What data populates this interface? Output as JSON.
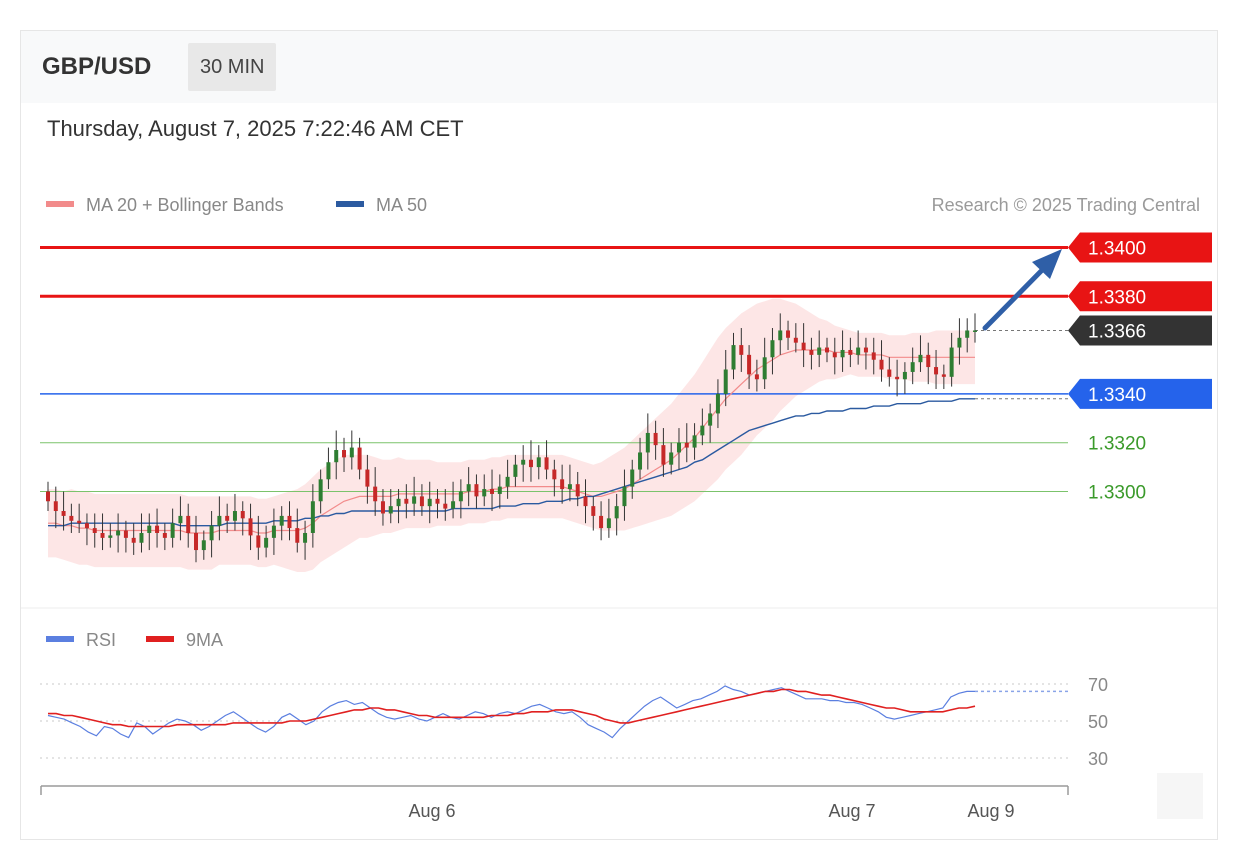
{
  "header": {
    "symbol": "GBP/USD",
    "timeframe": "30 MIN",
    "datetime": "Thursday, August 7, 2025 7:22:46 AM CET"
  },
  "legend": {
    "ma20_label": "MA 20 + Bollinger Bands",
    "ma50_label": "MA 50",
    "copyright": "Research © 2025 Trading Central",
    "ma20_color": "#f28b8b",
    "ma50_color": "#2b5aa0"
  },
  "rsi_legend": {
    "rsi_label": "RSI",
    "ma9_label": "9MA",
    "rsi_color": "#5b7fe0",
    "ma9_color": "#e02020"
  },
  "chart_data": [
    {
      "type": "candlestick",
      "ylim": [
        1.3255,
        1.3425
      ],
      "x_labels": [
        "Aug 6",
        "Aug 7",
        "Aug 9"
      ],
      "levels": [
        {
          "value": 1.34,
          "label": "1.3400",
          "color": "#e81414",
          "kind": "resistance"
        },
        {
          "value": 1.338,
          "label": "1.3380",
          "color": "#e81414",
          "kind": "resistance"
        },
        {
          "value": 1.3366,
          "label": "1.3366",
          "color": "#333333",
          "kind": "current"
        },
        {
          "value": 1.334,
          "label": "1.3340",
          "color": "#2563eb",
          "kind": "pivot"
        },
        {
          "value": 1.332,
          "label": "1.3320",
          "color": "#3a9a2a",
          "kind": "support"
        },
        {
          "value": 1.33,
          "label": "1.3300",
          "color": "#3a9a2a",
          "kind": "support"
        }
      ],
      "close_series": [
        1.3296,
        1.3292,
        1.329,
        1.3288,
        1.3287,
        1.3285,
        1.3283,
        1.3281,
        1.3282,
        1.3284,
        1.3281,
        1.3279,
        1.3283,
        1.3286,
        1.3283,
        1.3281,
        1.3287,
        1.329,
        1.3283,
        1.3276,
        1.328,
        1.3286,
        1.329,
        1.3288,
        1.3292,
        1.3289,
        1.3282,
        1.3277,
        1.3281,
        1.3286,
        1.329,
        1.3285,
        1.3279,
        1.3283,
        1.3296,
        1.3305,
        1.3312,
        1.3317,
        1.3314,
        1.3318,
        1.3309,
        1.3302,
        1.3296,
        1.3291,
        1.3294,
        1.3297,
        1.3295,
        1.3298,
        1.3294,
        1.3297,
        1.3295,
        1.3293,
        1.3296,
        1.33,
        1.3303,
        1.3298,
        1.3301,
        1.3299,
        1.3302,
        1.3306,
        1.3311,
        1.3313,
        1.331,
        1.3314,
        1.3309,
        1.3305,
        1.3301,
        1.3303,
        1.3298,
        1.3294,
        1.329,
        1.3285,
        1.3289,
        1.3294,
        1.3302,
        1.3309,
        1.3316,
        1.3324,
        1.3319,
        1.3311,
        1.3316,
        1.332,
        1.3318,
        1.3323,
        1.3327,
        1.3332,
        1.334,
        1.335,
        1.336,
        1.3356,
        1.3348,
        1.3346,
        1.3355,
        1.3362,
        1.3366,
        1.3363,
        1.3361,
        1.3358,
        1.3356,
        1.3359,
        1.3357,
        1.3355,
        1.3358,
        1.3356,
        1.3359,
        1.3357,
        1.3354,
        1.335,
        1.3347,
        1.3346,
        1.3349,
        1.3353,
        1.3356,
        1.3351,
        1.3348,
        1.3347,
        1.3359,
        1.3363,
        1.3366,
        1.3366
      ],
      "ma20": [
        1.3287,
        1.3287,
        1.3286,
        1.3286,
        1.3285,
        1.3285,
        1.3284,
        1.3284,
        1.3284,
        1.3284,
        1.3284,
        1.3284,
        1.3284,
        1.3284,
        1.3284,
        1.3284,
        1.3284,
        1.3284,
        1.3283,
        1.3283,
        1.3283,
        1.3283,
        1.3284,
        1.3284,
        1.3284,
        1.3284,
        1.3284,
        1.3283,
        1.3283,
        1.3284,
        1.3284,
        1.3284,
        1.3284,
        1.3285,
        1.3287,
        1.329,
        1.3292,
        1.3294,
        1.3296,
        1.3297,
        1.3298,
        1.3298,
        1.3298,
        1.3298,
        1.3298,
        1.3299,
        1.3299,
        1.3299,
        1.3299,
        1.3299,
        1.3299,
        1.3299,
        1.3299,
        1.3299,
        1.33,
        1.33,
        1.33,
        1.3301,
        1.3301,
        1.3302,
        1.3302,
        1.3302,
        1.3302,
        1.3302,
        1.3302,
        1.3302,
        1.3302,
        1.3301,
        1.33,
        1.3299,
        1.3298,
        1.3298,
        1.3299,
        1.33,
        1.3301,
        1.3303,
        1.3305,
        1.3307,
        1.3309,
        1.3311,
        1.3313,
        1.3316,
        1.3319,
        1.3322,
        1.3326,
        1.333,
        1.3334,
        1.3338,
        1.3341,
        1.3344,
        1.3347,
        1.335,
        1.3352,
        1.3354,
        1.3356,
        1.3357,
        1.3358,
        1.3358,
        1.3358,
        1.3358,
        1.3358,
        1.3357,
        1.3357,
        1.3357,
        1.3356,
        1.3356,
        1.3356,
        1.3356,
        1.3355,
        1.3355,
        1.3355,
        1.3355,
        1.3355,
        1.3355,
        1.3355,
        1.3355,
        1.3355,
        1.3355,
        1.3355,
        1.3355
      ],
      "ma50": [
        1.3286,
        1.3286,
        1.3286,
        1.3287,
        1.3287,
        1.3287,
        1.3287,
        1.3287,
        1.3287,
        1.3287,
        1.3287,
        1.3287,
        1.3287,
        1.3287,
        1.3287,
        1.3287,
        1.3287,
        1.3286,
        1.3286,
        1.3286,
        1.3286,
        1.3286,
        1.3286,
        1.3287,
        1.3287,
        1.3287,
        1.3287,
        1.3287,
        1.3287,
        1.3288,
        1.3288,
        1.3288,
        1.3288,
        1.3289,
        1.3289,
        1.329,
        1.329,
        1.3291,
        1.3291,
        1.3292,
        1.3292,
        1.3292,
        1.3292,
        1.3292,
        1.3292,
        1.3292,
        1.3292,
        1.3292,
        1.3292,
        1.3292,
        1.3292,
        1.3292,
        1.3293,
        1.3293,
        1.3293,
        1.3293,
        1.3293,
        1.3293,
        1.3294,
        1.3294,
        1.3294,
        1.3295,
        1.3295,
        1.3295,
        1.3296,
        1.3296,
        1.3296,
        1.3297,
        1.3297,
        1.3298,
        1.3298,
        1.3299,
        1.33,
        1.3301,
        1.3302,
        1.3303,
        1.3304,
        1.3305,
        1.3306,
        1.3307,
        1.3308,
        1.3309,
        1.331,
        1.3312,
        1.3313,
        1.3315,
        1.3317,
        1.3319,
        1.3321,
        1.3323,
        1.3325,
        1.3326,
        1.3327,
        1.3328,
        1.3329,
        1.333,
        1.3331,
        1.3331,
        1.3332,
        1.3332,
        1.3333,
        1.3333,
        1.3333,
        1.3334,
        1.3334,
        1.3334,
        1.3335,
        1.3335,
        1.3335,
        1.3336,
        1.3336,
        1.3336,
        1.3336,
        1.3337,
        1.3337,
        1.3337,
        1.3337,
        1.3338,
        1.3338,
        1.3338
      ],
      "bollinger_halfwidth": [
        0.0014,
        0.0014,
        0.0014,
        0.0015,
        0.0015,
        0.0015,
        0.0015,
        0.0015,
        0.0015,
        0.0015,
        0.0015,
        0.0015,
        0.0015,
        0.0015,
        0.0015,
        0.0015,
        0.0015,
        0.0015,
        0.0015,
        0.0015,
        0.0015,
        0.0015,
        0.0014,
        0.0014,
        0.0014,
        0.0014,
        0.0014,
        0.0014,
        0.0014,
        0.0014,
        0.0015,
        0.0016,
        0.0017,
        0.0018,
        0.0019,
        0.0019,
        0.0019,
        0.0019,
        0.0019,
        0.0018,
        0.0017,
        0.0017,
        0.0016,
        0.0015,
        0.0015,
        0.0015,
        0.0014,
        0.0014,
        0.0014,
        0.0014,
        0.0013,
        0.0013,
        0.0013,
        0.0013,
        0.0013,
        0.0013,
        0.0013,
        0.0013,
        0.0013,
        0.0013,
        0.0013,
        0.0013,
        0.0013,
        0.0013,
        0.0013,
        0.0013,
        0.0013,
        0.0013,
        0.0013,
        0.0013,
        0.0013,
        0.0014,
        0.0015,
        0.0016,
        0.0017,
        0.0018,
        0.0019,
        0.002,
        0.0021,
        0.0022,
        0.0023,
        0.0024,
        0.0025,
        0.0026,
        0.0027,
        0.0028,
        0.0029,
        0.0029,
        0.0029,
        0.0029,
        0.0028,
        0.0027,
        0.0026,
        0.0025,
        0.0023,
        0.0021,
        0.0019,
        0.0017,
        0.0015,
        0.0013,
        0.0012,
        0.0011,
        0.001,
        0.0009,
        0.0009,
        0.0009,
        0.0009,
        0.0009,
        0.0009,
        0.0009,
        0.0009,
        0.001,
        0.001,
        0.001,
        0.0011,
        0.0011,
        0.0011,
        0.0011,
        0.0011,
        0.0011
      ]
    },
    {
      "type": "line",
      "ylim": [
        30,
        70
      ],
      "y_ticks": [
        "70",
        "50",
        "30"
      ],
      "series": [
        {
          "name": "RSI",
          "values": [
            53,
            52,
            51,
            49,
            47,
            44,
            42,
            47,
            46,
            43,
            41,
            49,
            47,
            43,
            46,
            49,
            51,
            50,
            48,
            45,
            47,
            50,
            53,
            55,
            52,
            49,
            46,
            44,
            47,
            52,
            54,
            51,
            48,
            50,
            55,
            58,
            60,
            61,
            59,
            60,
            57,
            54,
            52,
            51,
            52,
            53,
            51,
            50,
            52,
            54,
            52,
            51,
            53,
            55,
            54,
            52,
            54,
            55,
            54,
            56,
            58,
            59,
            57,
            55,
            54,
            55,
            52,
            48,
            46,
            44,
            41,
            46,
            50,
            54,
            58,
            61,
            63,
            60,
            57,
            59,
            61,
            62,
            64,
            66,
            69,
            67,
            66,
            64,
            65,
            66,
            67,
            68,
            66,
            64,
            62,
            62,
            62,
            61,
            61,
            60,
            60,
            59,
            57,
            55,
            52,
            51,
            52,
            53,
            54,
            55,
            56,
            57,
            63,
            65,
            66,
            66
          ]
        },
        {
          "name": "9MA",
          "values": [
            54,
            54,
            53,
            53,
            52,
            51,
            50,
            49,
            48,
            48,
            47,
            47,
            47,
            47,
            47,
            47,
            48,
            48,
            48,
            48,
            48,
            48,
            48,
            49,
            49,
            49,
            49,
            49,
            49,
            49,
            50,
            50,
            50,
            51,
            52,
            53,
            54,
            55,
            56,
            56,
            57,
            57,
            56,
            56,
            55,
            54,
            53,
            53,
            52,
            52,
            52,
            52,
            52,
            52,
            52,
            53,
            53,
            53,
            54,
            54,
            55,
            55,
            55,
            56,
            56,
            56,
            55,
            54,
            53,
            51,
            50,
            49,
            49,
            50,
            51,
            52,
            53,
            54,
            55,
            56,
            57,
            58,
            59,
            60,
            61,
            62,
            63,
            64,
            65,
            66,
            66,
            67,
            67,
            66,
            66,
            65,
            64,
            64,
            63,
            62,
            61,
            60,
            59,
            58,
            57,
            57,
            56,
            55,
            55,
            55,
            55,
            55,
            56,
            57,
            57,
            58
          ]
        }
      ]
    }
  ]
}
